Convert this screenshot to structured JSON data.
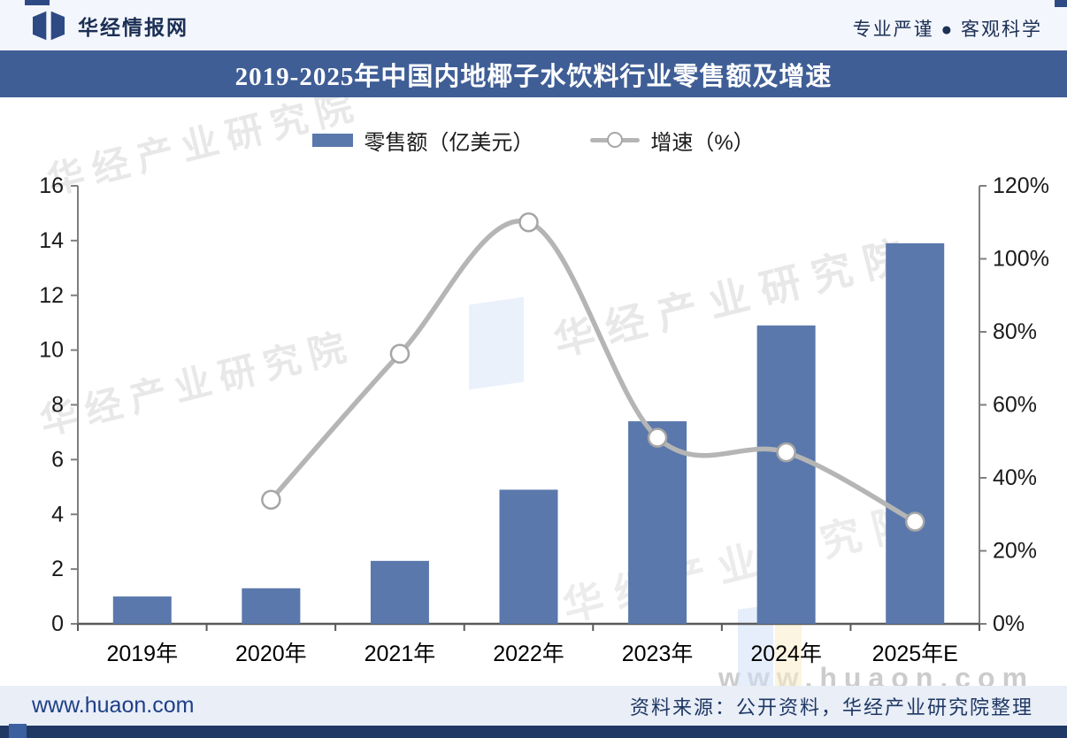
{
  "header": {
    "brand": "华经情报网",
    "slogan": "专业严谨 ● 客观科学"
  },
  "title": "2019-2025年中国内地椰子水饮料行业零售额及增速",
  "legend": {
    "bars_label": "零售额（亿美元）",
    "line_label": "增速（%）"
  },
  "chart_data": {
    "type": "bar+line",
    "title": "2019-2025年中国内地椰子水饮料行业零售额及增速",
    "categories": [
      "2019年",
      "2020年",
      "2021年",
      "2022年",
      "2023年",
      "2024年",
      "2025年E"
    ],
    "series": [
      {
        "name": "零售额（亿美元）",
        "type": "bar",
        "axis": "left",
        "values": [
          1.0,
          1.3,
          2.3,
          4.9,
          7.4,
          10.9,
          13.9
        ]
      },
      {
        "name": "增速（%）",
        "type": "line",
        "axis": "right",
        "values": [
          null,
          34,
          74,
          110,
          51,
          47,
          28
        ]
      }
    ],
    "left_axis": {
      "min": 0,
      "max": 16,
      "tick_step": 2,
      "ticks": [
        "0",
        "2",
        "4",
        "6",
        "8",
        "10",
        "12",
        "14",
        "16"
      ]
    },
    "right_axis": {
      "min": 0,
      "max": 120,
      "tick_step": 20,
      "ticks": [
        "0%",
        "20%",
        "40%",
        "60%",
        "80%",
        "100%",
        "120%"
      ]
    },
    "grid": false,
    "legend_position": "top-center"
  },
  "watermark": {
    "text": "华经产业研究院",
    "url": "www.huaon.com"
  },
  "footer": {
    "site": "www.huaon.com",
    "source": "资料来源：公开资料，华经产业研究院整理"
  },
  "colors": {
    "bar": "#5a78ac",
    "line": "#b5b5b5",
    "marker_fill": "#ffffff",
    "marker_stroke": "#a6a6a6",
    "axis": "#7f7f7f",
    "axis_bottom": "#595959",
    "tick_text": "#1a1a1a",
    "title_bg": "#3f5e96",
    "header_bg": "#f3f6fc",
    "footer_bg": "#e9eef7",
    "bottom_bar": "#1f3864",
    "logo": "#2d4a85"
  }
}
